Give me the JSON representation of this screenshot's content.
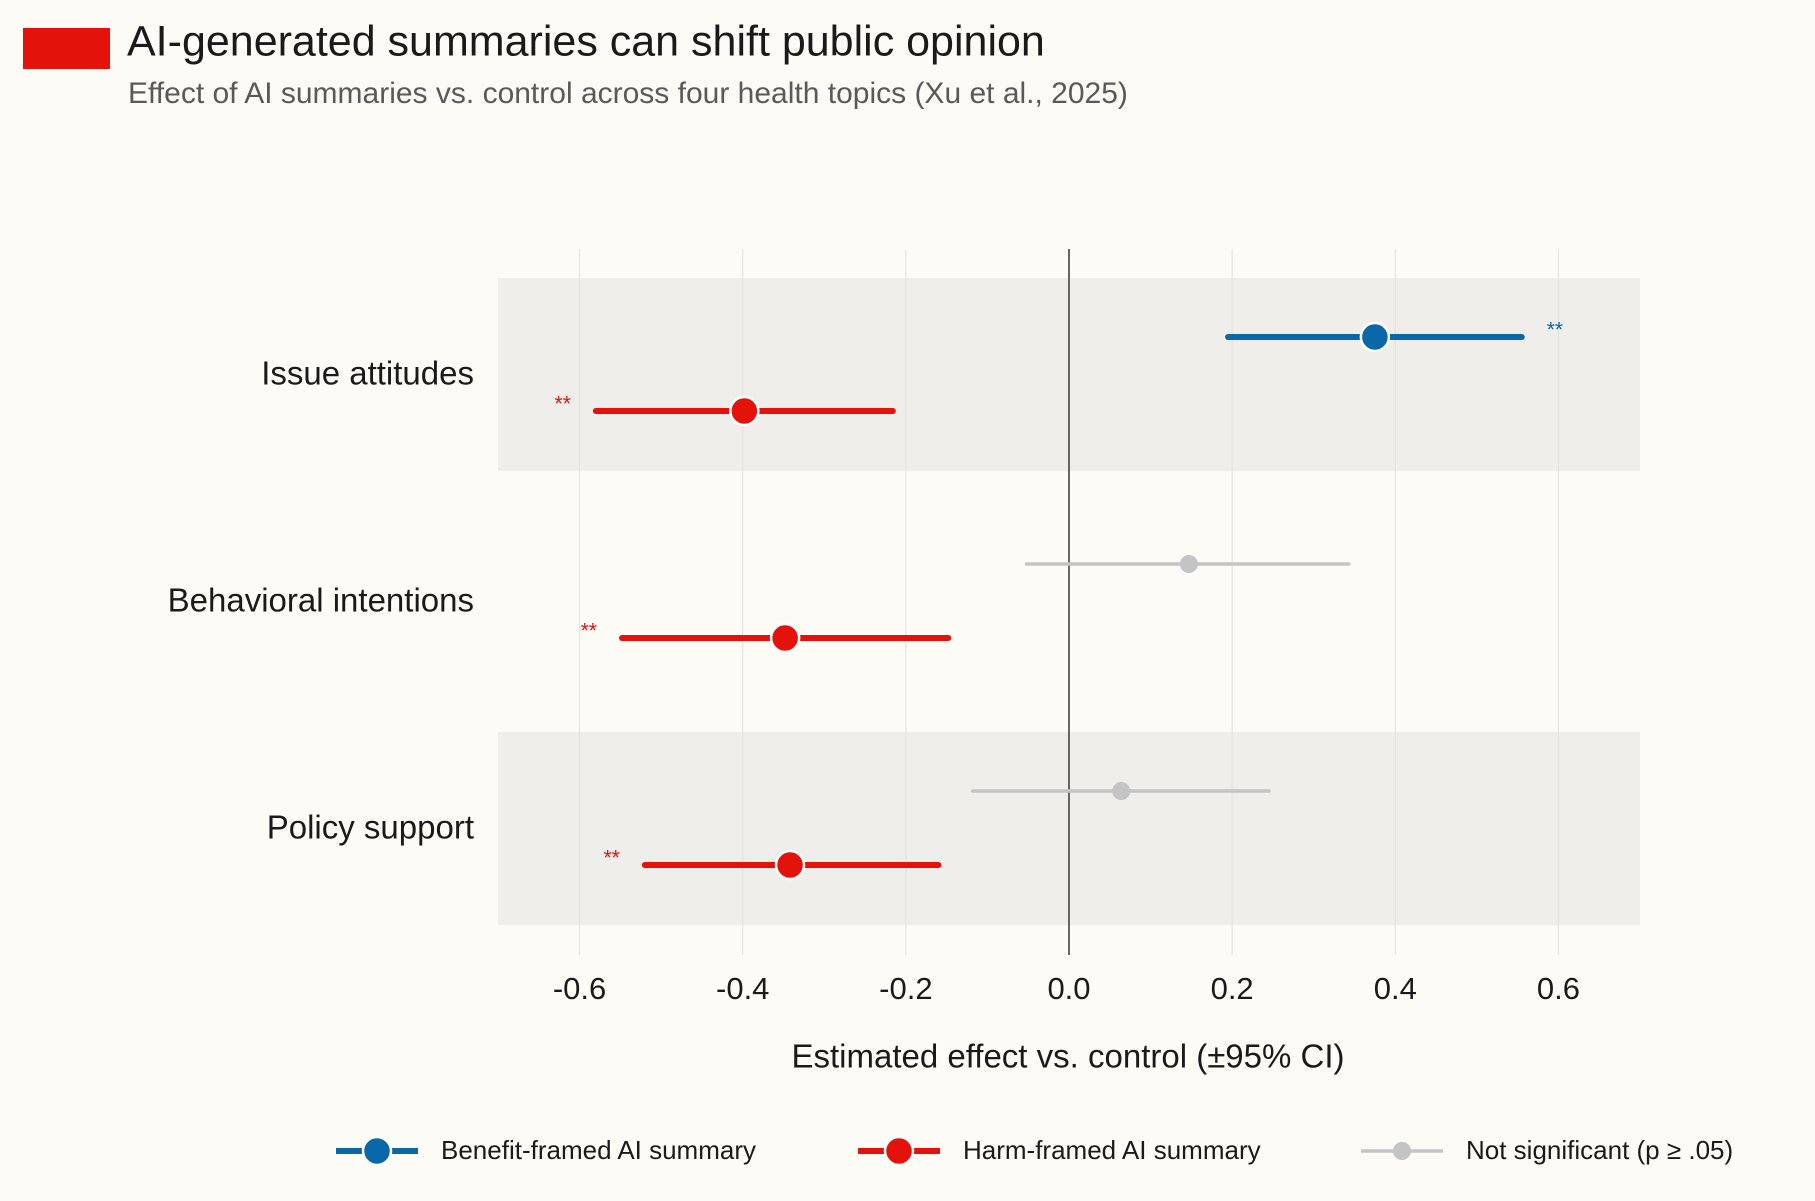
{
  "chart_data": {
    "type": "forest",
    "title": "AI-generated summaries can shift public opinion",
    "subtitle": "Effect of AI summaries vs. control across four health topics (Xu et al., 2025)",
    "x_label": "Estimated effect vs. control  (±95% CI)",
    "categories": [
      "Issue attitudes",
      "Behavioral intentions",
      "Policy support"
    ],
    "series": [
      {
        "name": "Benefit-framed AI summary",
        "color": "#0a67a8",
        "values": [
          0.375,
          0.147,
          0.064
        ],
        "lower": [
          0.195,
          -0.052,
          -0.118
        ],
        "upper": [
          0.555,
          0.343,
          0.245
        ],
        "significant": [
          true,
          false,
          false
        ],
        "significance_labels": [
          "**",
          null,
          null
        ]
      },
      {
        "name": "Harm-framed AI summary",
        "color": "#e3120b",
        "values": [
          -0.398,
          -0.348,
          -0.342
        ],
        "lower": [
          -0.58,
          -0.548,
          -0.52
        ],
        "upper": [
          -0.216,
          -0.148,
          -0.16
        ],
        "significant": [
          true,
          true,
          true
        ],
        "significance_labels": [
          "**",
          "**",
          "**"
        ]
      }
    ],
    "nonsignificant": {
      "name": "Not significant (p ≥ .05)",
      "color": "#c4c4c4"
    },
    "xlim": [
      -0.7,
      0.7
    ],
    "xticks": [
      -0.6,
      -0.4,
      -0.2,
      {
        "value": 0,
        "label": "0.0"
      },
      0.2,
      0.4,
      0.6
    ],
    "grid": true,
    "legend": "bottom"
  }
}
